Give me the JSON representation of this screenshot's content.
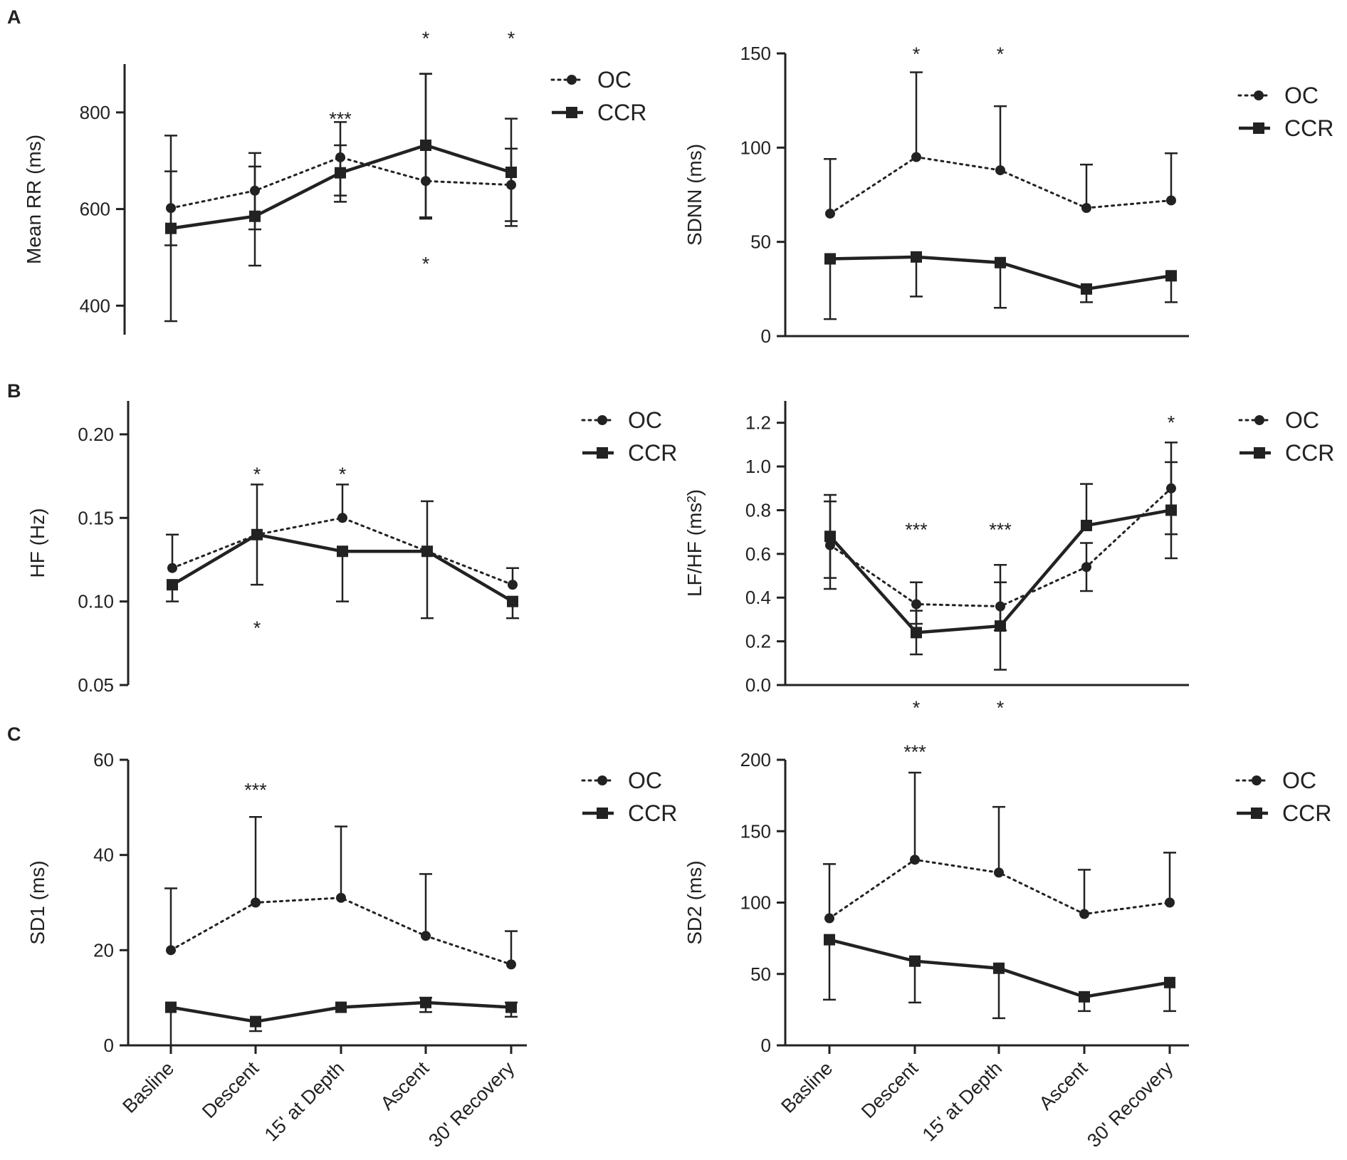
{
  "panel_letters": [
    "A",
    "B",
    "C"
  ],
  "legend": {
    "oc": "OC",
    "ccr": "CCR"
  },
  "chart_data": [
    {
      "id": "A-left",
      "panel": "A",
      "type": "line",
      "ylabel": "Mean RR (ms)",
      "ylim": [
        340,
        900
      ],
      "yticks": [
        400,
        600,
        800
      ],
      "ytick_labels": [
        "400",
        "600",
        "800"
      ],
      "categories": [
        "Basline",
        "Descent",
        "15' at Depth",
        "Ascent",
        "30' Recovery"
      ],
      "show_xticks": false,
      "series": [
        {
          "name": "OC",
          "values": [
            602,
            638,
            707,
            658,
            650
          ],
          "err_hi": [
            752,
            716,
            780,
            880,
            725
          ],
          "err_lo": [
            525,
            558,
            628,
            580,
            575
          ]
        },
        {
          "name": "CCR",
          "values": [
            560,
            585,
            675,
            732,
            676
          ],
          "err_hi": [
            678,
            688,
            732,
            880,
            787
          ],
          "err_lo": [
            368,
            483,
            615,
            583,
            565
          ]
        }
      ],
      "annotations": [
        {
          "text": "*",
          "category": "Ascent",
          "where": "top"
        },
        {
          "text": "*",
          "category": "30' Recovery",
          "where": "top"
        },
        {
          "text": "***",
          "category": "15' at Depth",
          "value": 800
        },
        {
          "text": "*",
          "category": "Ascent",
          "value": 500
        }
      ]
    },
    {
      "id": "A-right",
      "panel": "A",
      "type": "line",
      "ylabel": "SDNN (ms)",
      "ylim": [
        0,
        150
      ],
      "yticks": [
        0,
        50,
        100,
        150
      ],
      "ytick_labels": [
        "0",
        "50",
        "100",
        "150"
      ],
      "categories": [
        "Basline",
        "Descent",
        "15' at Depth",
        "Ascent",
        "30' Recovery"
      ],
      "show_xticks": false,
      "series": [
        {
          "name": "OC",
          "values": [
            65,
            95,
            88,
            68,
            72
          ],
          "err_hi": [
            94,
            140,
            122,
            91,
            97
          ],
          "err_lo": [
            null,
            null,
            null,
            null,
            null
          ]
        },
        {
          "name": "CCR",
          "values": [
            41,
            42,
            39,
            25,
            32
          ],
          "err_hi": [
            null,
            null,
            null,
            null,
            null
          ],
          "err_lo": [
            9,
            21,
            15,
            18,
            18
          ]
        }
      ],
      "annotations": [
        {
          "text": "*",
          "category": "Descent",
          "where": "top"
        },
        {
          "text": "*",
          "category": "15' at Depth",
          "where": "top"
        }
      ]
    },
    {
      "id": "B-left",
      "panel": "B",
      "type": "line",
      "ylabel": "HF (Hz)",
      "ylim": [
        0.05,
        0.22
      ],
      "yticks": [
        0.05,
        0.1,
        0.15,
        0.2
      ],
      "ytick_labels": [
        "0.05",
        "0.10",
        "0.15",
        "0.20"
      ],
      "categories": [
        "Basline",
        "Descent",
        "15' at Depth",
        "Ascent",
        "30' Recovery"
      ],
      "show_xticks": false,
      "series": [
        {
          "name": "OC",
          "values": [
            0.12,
            0.14,
            0.15,
            0.13,
            0.11
          ],
          "err_hi": [
            0.14,
            0.17,
            0.17,
            0.16,
            0.12
          ],
          "err_lo": [
            null,
            null,
            null,
            null,
            null
          ]
        },
        {
          "name": "CCR",
          "values": [
            0.11,
            0.14,
            0.13,
            0.13,
            0.1
          ],
          "err_hi": [
            null,
            null,
            null,
            null,
            null
          ],
          "err_lo": [
            0.1,
            0.11,
            0.1,
            0.09,
            0.09
          ]
        }
      ],
      "annotations": [
        {
          "text": "*",
          "category": "Descent",
          "value": 0.18
        },
        {
          "text": "*",
          "category": "15' at Depth",
          "value": 0.18
        },
        {
          "text": "*",
          "category": "Descent",
          "value": 0.088
        }
      ]
    },
    {
      "id": "B-right",
      "panel": "B",
      "type": "line",
      "ylabel": "LF/HF (ms²)",
      "ylim": [
        0,
        1.3
      ],
      "yticks": [
        0,
        0.2,
        0.4,
        0.6,
        0.8,
        1.0,
        1.2
      ],
      "ytick_labels": [
        "0.0",
        "0.2",
        "0.4",
        "0.6",
        "0.8",
        "1.0",
        "1.2"
      ],
      "categories": [
        "Basline",
        "Descent",
        "15' at Depth",
        "Ascent",
        "30' Recovery"
      ],
      "show_xticks": false,
      "series": [
        {
          "name": "OC",
          "values": [
            0.64,
            0.37,
            0.36,
            0.54,
            0.9
          ],
          "err_hi": [
            0.84,
            0.47,
            0.47,
            0.65,
            1.11
          ],
          "err_lo": [
            0.49,
            0.28,
            0.25,
            0.43,
            0.69
          ]
        },
        {
          "name": "CCR",
          "values": [
            0.68,
            0.24,
            0.27,
            0.73,
            0.8
          ],
          "err_hi": [
            0.87,
            0.34,
            0.55,
            0.92,
            1.02
          ],
          "err_lo": [
            0.44,
            0.14,
            0.07,
            null,
            0.58
          ]
        }
      ],
      "annotations": [
        {
          "text": "***",
          "category": "Descent",
          "value": 0.74
        },
        {
          "text": "***",
          "category": "15' at Depth",
          "value": 0.74
        },
        {
          "text": "*",
          "category": "30' Recovery",
          "value": 1.23
        },
        {
          "text": "*",
          "category": "Descent",
          "where": "bottom"
        },
        {
          "text": "*",
          "category": "15' at Depth",
          "where": "bottom"
        }
      ]
    },
    {
      "id": "C-left",
      "panel": "C",
      "type": "line",
      "ylabel": "SD1 (ms)",
      "ylim": [
        0,
        60
      ],
      "yticks": [
        0,
        20,
        40,
        60
      ],
      "ytick_labels": [
        "0",
        "20",
        "40",
        "60"
      ],
      "categories": [
        "Basline",
        "Descent",
        "15' at Depth",
        "Ascent",
        "30' Recovery"
      ],
      "show_xticks": true,
      "series": [
        {
          "name": "OC",
          "values": [
            20,
            30,
            31,
            23,
            17
          ],
          "err_hi": [
            33,
            48,
            46,
            36,
            24
          ],
          "err_lo": [
            null,
            null,
            null,
            null,
            null
          ]
        },
        {
          "name": "CCR",
          "values": [
            8,
            5,
            8,
            9,
            8
          ],
          "err_hi": [
            null,
            null,
            null,
            10,
            9
          ],
          "err_lo": [
            0,
            3,
            null,
            7,
            6
          ]
        }
      ],
      "annotations": [
        {
          "text": "***",
          "category": "Descent",
          "value": 55
        }
      ]
    },
    {
      "id": "C-right",
      "panel": "C",
      "type": "line",
      "ylabel": "SD2 (ms)",
      "ylim": [
        0,
        200
      ],
      "yticks": [
        0,
        50,
        100,
        150,
        200
      ],
      "ytick_labels": [
        "0",
        "50",
        "100",
        "150",
        "200"
      ],
      "categories": [
        "Basline",
        "Descent",
        "15' at Depth",
        "Ascent",
        "30' Recovery"
      ],
      "show_xticks": true,
      "series": [
        {
          "name": "OC",
          "values": [
            89,
            130,
            121,
            92,
            100
          ],
          "err_hi": [
            127,
            191,
            167,
            123,
            135
          ],
          "err_lo": [
            null,
            null,
            null,
            null,
            null
          ]
        },
        {
          "name": "CCR",
          "values": [
            74,
            59,
            54,
            34,
            44
          ],
          "err_hi": [
            null,
            null,
            null,
            null,
            null
          ],
          "err_lo": [
            32,
            30,
            19,
            24,
            24
          ]
        }
      ],
      "annotations": [
        {
          "text": "***",
          "category": "Descent",
          "value": 210
        }
      ]
    }
  ]
}
